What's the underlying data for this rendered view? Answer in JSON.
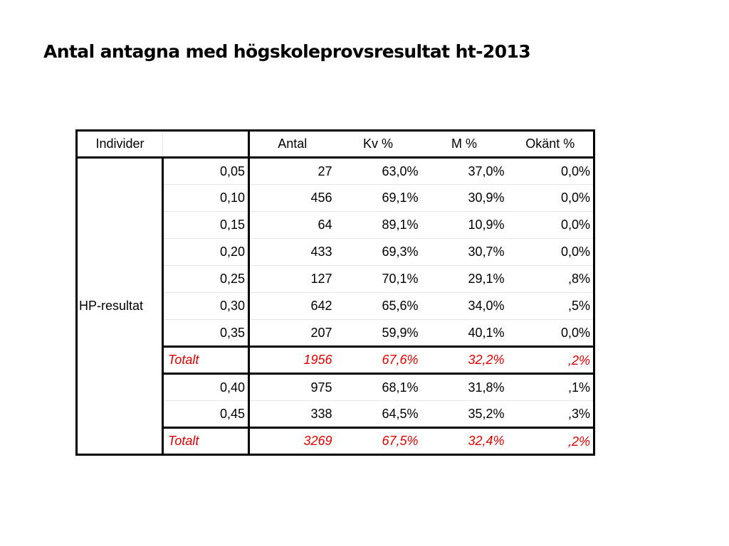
{
  "title": "Antal antagna med högskoleprovsresultat ht-2013",
  "table": {
    "headers": {
      "individer": "Individer",
      "blank": "",
      "antal": "Antal",
      "kv": "Kv %",
      "m": "M %",
      "okant": "Okänt %"
    },
    "group_label": "HP-resultat",
    "rows": [
      {
        "hp": "0,05",
        "antal": "27",
        "kv": "63,0%",
        "m": "37,0%",
        "okant": "0,0%"
      },
      {
        "hp": "0,10",
        "antal": "456",
        "kv": "69,1%",
        "m": "30,9%",
        "okant": "0,0%"
      },
      {
        "hp": "0,15",
        "antal": "64",
        "kv": "89,1%",
        "m": "10,9%",
        "okant": "0,0%"
      },
      {
        "hp": "0,20",
        "antal": "433",
        "kv": "69,3%",
        "m": "30,7%",
        "okant": "0,0%"
      },
      {
        "hp": "0,25",
        "antal": "127",
        "kv": "70,1%",
        "m": "29,1%",
        "okant": ",8%"
      },
      {
        "hp": "0,30",
        "antal": "642",
        "kv": "65,6%",
        "m": "34,0%",
        "okant": ",5%"
      },
      {
        "hp": "0,35",
        "antal": "207",
        "kv": "59,9%",
        "m": "40,1%",
        "okant": "0,0%"
      },
      {
        "hp": "Totalt",
        "antal": "1956",
        "kv": "67,6%",
        "m": "32,2%",
        "okant": ",2%",
        "total": true
      },
      {
        "hp": "0,40",
        "antal": "975",
        "kv": "68,1%",
        "m": "31,8%",
        "okant": ",1%"
      },
      {
        "hp": "0,45",
        "antal": "338",
        "kv": "64,5%",
        "m": "35,2%",
        "okant": ",3%"
      },
      {
        "hp": "Totalt",
        "antal": "3269",
        "kv": "67,5%",
        "m": "32,4%",
        "okant": ",2%",
        "total": true
      }
    ]
  },
  "colors": {
    "total_text": "#e00000",
    "border": "#000000"
  }
}
